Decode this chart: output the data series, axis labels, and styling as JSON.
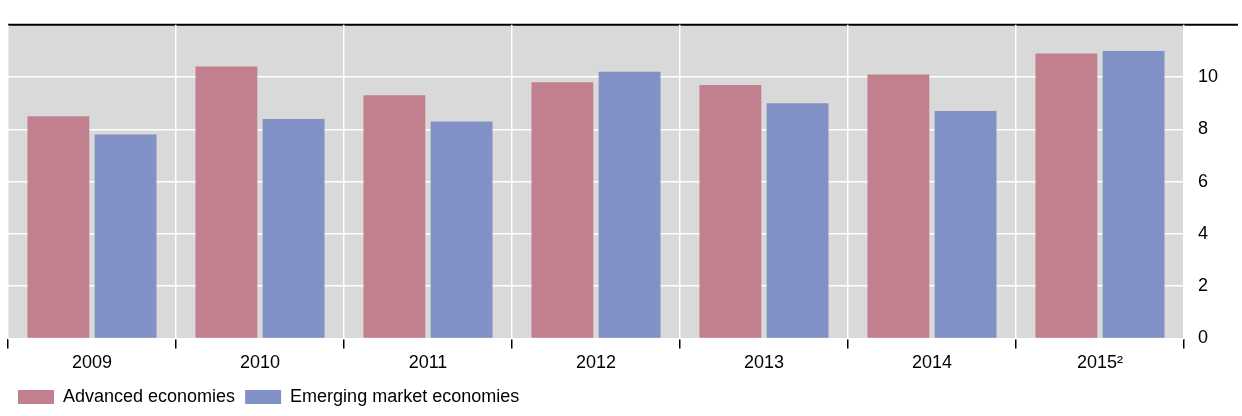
{
  "chart_data": {
    "type": "bar",
    "categories": [
      "2009",
      "2010",
      "2011",
      "2012",
      "2013",
      "2014",
      "2015²"
    ],
    "series": [
      {
        "name": "Advanced economies",
        "color": "#c27f8e",
        "values": [
          8.5,
          10.4,
          9.3,
          9.8,
          9.7,
          10.1,
          10.9
        ]
      },
      {
        "name": "Emerging market economies",
        "color": "#8190c5",
        "values": [
          7.8,
          8.4,
          8.3,
          10.2,
          9.0,
          8.7,
          11.0
        ]
      }
    ],
    "ylim": [
      0,
      12
    ],
    "yticks": [
      0,
      2,
      4,
      6,
      8,
      10
    ],
    "grid": true,
    "legend": "bottom left"
  }
}
